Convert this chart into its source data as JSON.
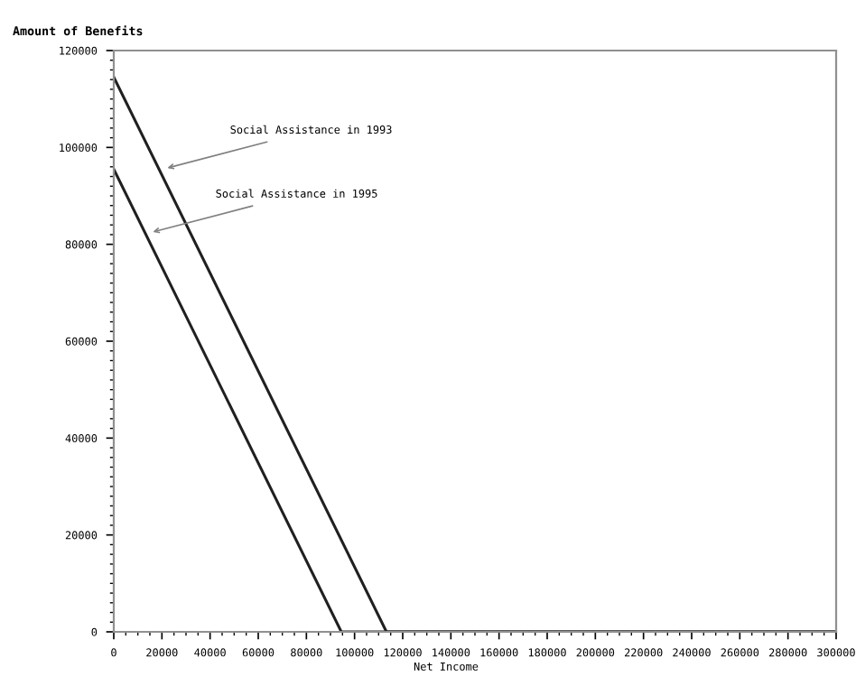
{
  "chart_data": {
    "type": "line",
    "xlabel": "Net Income",
    "ylabel": "Amount of Benefits",
    "series": [
      {
        "color": "#202020",
        "x": [
          0,
          113250,
          300000
        ],
        "values": [
          114500,
          0,
          0
        ]
      },
      {
        "color": "#202020",
        "x": [
          0,
          94500,
          300000
        ],
        "values": [
          95500,
          0,
          0
        ]
      }
    ],
    "annotations": [
      {
        "text": "Social Assistance in 1993",
        "x": 20250,
        "y": 95500
      },
      {
        "text": "Social Assistance in 1995",
        "x": 14250,
        "y": 82300
      }
    ],
    "xlim": [
      0,
      300000
    ],
    "xticks": [
      0,
      20000,
      40000,
      60000,
      80000,
      100000,
      120000,
      140000,
      160000,
      180000,
      200000,
      220000,
      240000,
      260000,
      280000,
      300000
    ],
    "ylim": [
      0,
      120000
    ],
    "yticks": [
      0,
      20000,
      40000,
      60000,
      80000,
      100000,
      120000
    ],
    "grid": false,
    "marker": "none",
    "line_style": "solid"
  }
}
